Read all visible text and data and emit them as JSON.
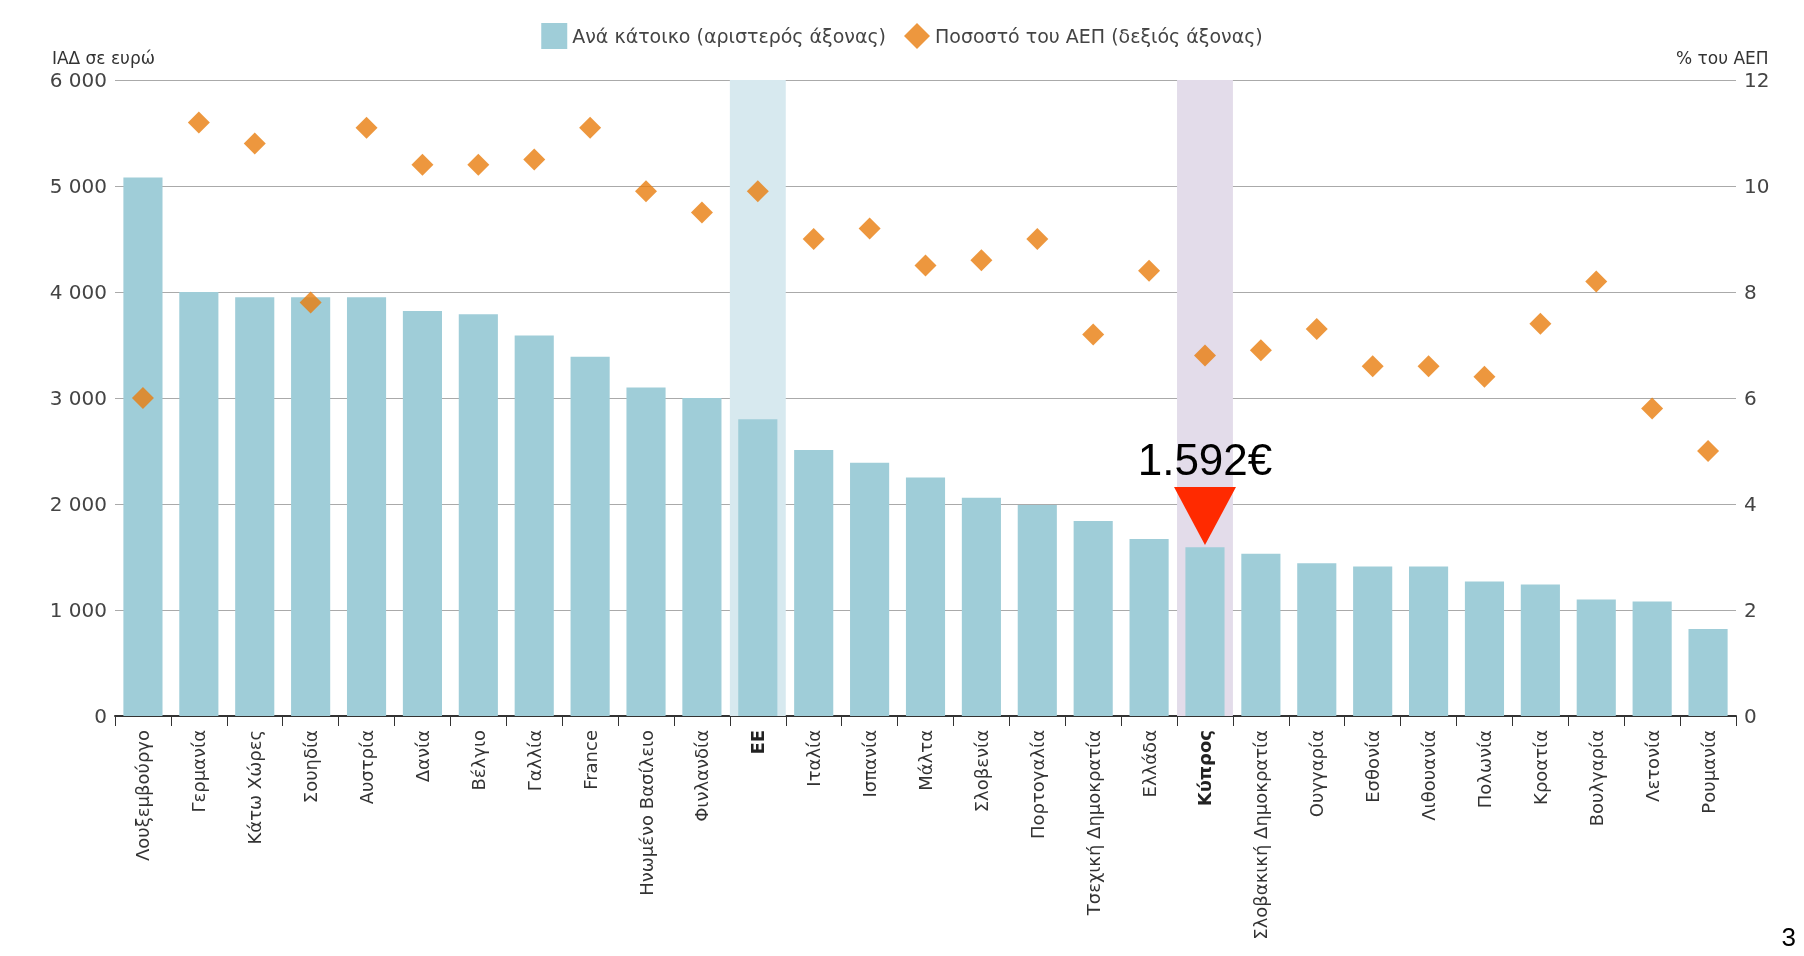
{
  "chart_data": {
    "type": "bar",
    "ylabel": "ΙΑΔ σε ευρώ",
    "y2label": "% του ΑΕΠ",
    "categories": [
      "Λουξεμβούργο",
      "Γερμανία",
      "Κάτω Χώρες",
      "Σουηδία",
      "Αυστρία",
      "Δανία",
      "Βέλγιο",
      "Γαλλία",
      "France",
      "Ηνωμένο Βασίλειο",
      "Φινλανδία",
      "ΕΕ",
      "Ιταλία",
      "Ισπανία",
      "Μάλτα",
      "Σλοβενία",
      "Πορτογαλία",
      "Τσεχική Δημοκρατία",
      "Ελλάδα",
      "Κύπρος",
      "Σλοβακική Δημοκρατία",
      "Ουγγαρία",
      "Εσθονία",
      "Λιθουανία",
      "Πολωνία",
      "Κροατία",
      "Βουλγαρία",
      "Λετονία",
      "Ρουμανία"
    ],
    "series": [
      {
        "name": "Ανά κάτοικο (αριστερός άξονας)",
        "color": "#9fcdd8",
        "values": [
          5080,
          4000,
          3950,
          3950,
          3950,
          3820,
          3790,
          3590,
          3390,
          3100,
          3000,
          2800,
          2510,
          2390,
          2250,
          2060,
          1990,
          1840,
          1670,
          1592,
          1530,
          1440,
          1410,
          1410,
          1270,
          1240,
          1100,
          1080,
          820
        ]
      },
      {
        "name": "Ποσοστό του ΑΕΠ (δεξιός άξονας)",
        "type": "scatter",
        "axis": "y2",
        "marker": "diamond",
        "color": "#e87d0e",
        "values": [
          6.0,
          11.2,
          10.8,
          7.8,
          11.1,
          10.4,
          10.4,
          10.5,
          11.1,
          9.9,
          9.5,
          9.9,
          9.0,
          9.2,
          8.5,
          8.6,
          9.0,
          7.2,
          8.4,
          6.8,
          6.9,
          7.3,
          6.6,
          6.6,
          6.4,
          7.4,
          8.2,
          5.8,
          5.0
        ]
      }
    ],
    "ylim": [
      0,
      6000
    ],
    "yticks": [
      0,
      {
        "value": 1000,
        "label": "1 000"
      },
      {
        "value": 2000,
        "label": "2 000"
      },
      {
        "value": 3000,
        "label": "3 000"
      },
      {
        "value": 4000,
        "label": "4 000"
      },
      {
        "value": 5000,
        "label": "5 000"
      },
      {
        "value": 6000,
        "label": "6 000"
      }
    ],
    "y2lim": [
      0,
      12
    ],
    "y2ticks": [
      0,
      2,
      4,
      6,
      8,
      10,
      12
    ],
    "grid": "y",
    "legend": "top",
    "bands": [
      {
        "axis": "x",
        "from": "ΕΕ",
        "to": "ΕΕ",
        "color": "#d7e9ef"
      },
      {
        "axis": "x",
        "from": "Κύπρος",
        "to": "Κύπρος",
        "color": "#e3dcea"
      }
    ],
    "annotations": [
      {
        "text": "1.592€",
        "x": "Κύπρος",
        "y": 1592
      },
      "3"
    ]
  }
}
